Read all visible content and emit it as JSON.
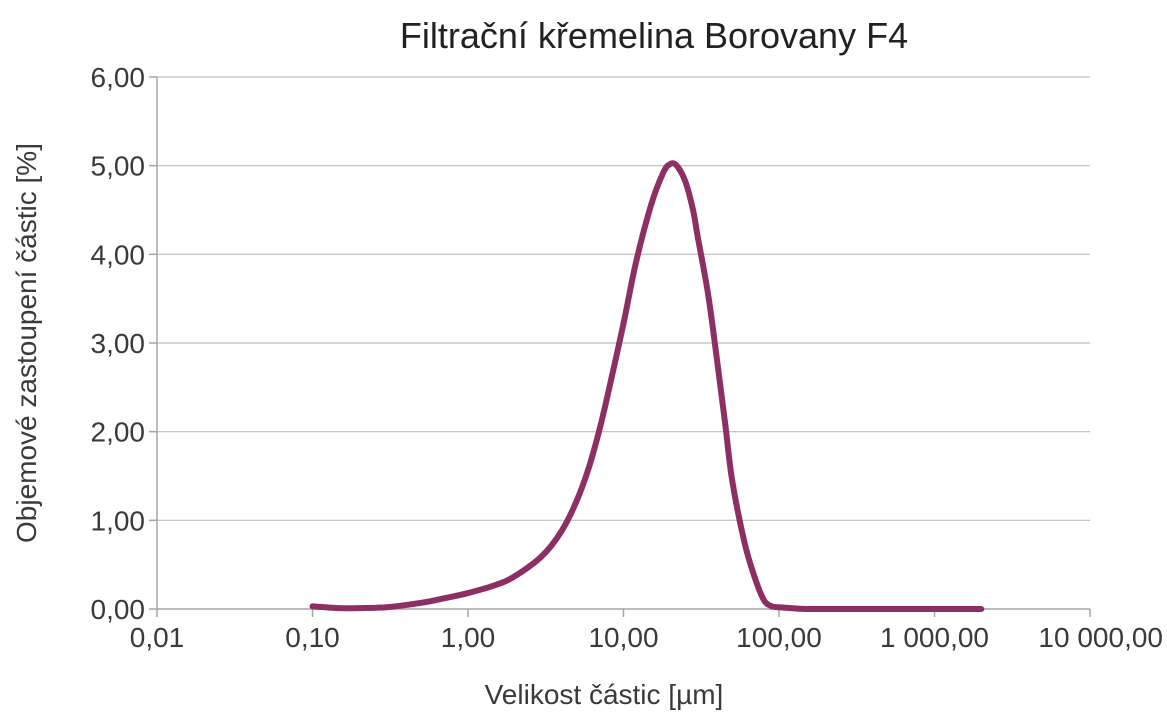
{
  "chart_data": {
    "type": "line",
    "title": "Filtrační křemelina Borovany F4",
    "xlabel": "Velikost částic [µm]",
    "ylabel": "Objemové zastoupení částic [%]",
    "x_scale": "log",
    "xlim": [
      0.01,
      10000
    ],
    "ylim": [
      0,
      6
    ],
    "grid": "horizontal",
    "legend": "none",
    "series_color": "#8e2f64",
    "x_ticks": [
      {
        "value": 0.01,
        "label": "0,01"
      },
      {
        "value": 0.1,
        "label": "0,10"
      },
      {
        "value": 1,
        "label": "1,00"
      },
      {
        "value": 10,
        "label": "10,00"
      },
      {
        "value": 100,
        "label": "100,00"
      },
      {
        "value": 1000,
        "label": "1 000,00"
      },
      {
        "value": 10000,
        "label": "10 000,00"
      }
    ],
    "y_ticks": [
      {
        "value": 0,
        "label": "0,00"
      },
      {
        "value": 1,
        "label": "1,00"
      },
      {
        "value": 2,
        "label": "2,00"
      },
      {
        "value": 3,
        "label": "3,00"
      },
      {
        "value": 4,
        "label": "4,00"
      },
      {
        "value": 5,
        "label": "5,00"
      },
      {
        "value": 6,
        "label": "6,00"
      }
    ],
    "series": [
      {
        "x": [
          0.1,
          0.15,
          0.2,
          0.3,
          0.5,
          0.7,
          1.0,
          1.5,
          2.0,
          3.0,
          4.0,
          5.0,
          6.0,
          7.0,
          8.0,
          10.0,
          12.0,
          15.0,
          18.0,
          20.0,
          22.0,
          25.0,
          28.0,
          30.0,
          35.0,
          40.0,
          45.0,
          50.0,
          60.0,
          70.0,
          80.0,
          90.0,
          100.0,
          120.0,
          150.0,
          300.0,
          1000.0,
          2000.0
        ],
        "y": [
          0.03,
          0.01,
          0.01,
          0.02,
          0.07,
          0.12,
          0.18,
          0.27,
          0.37,
          0.6,
          0.88,
          1.22,
          1.6,
          2.02,
          2.45,
          3.22,
          3.9,
          4.55,
          4.92,
          5.02,
          5.0,
          4.82,
          4.5,
          4.2,
          3.55,
          2.8,
          2.1,
          1.45,
          0.75,
          0.35,
          0.1,
          0.03,
          0.02,
          0.01,
          0.0,
          0.0,
          0.0,
          0.0
        ]
      }
    ]
  }
}
